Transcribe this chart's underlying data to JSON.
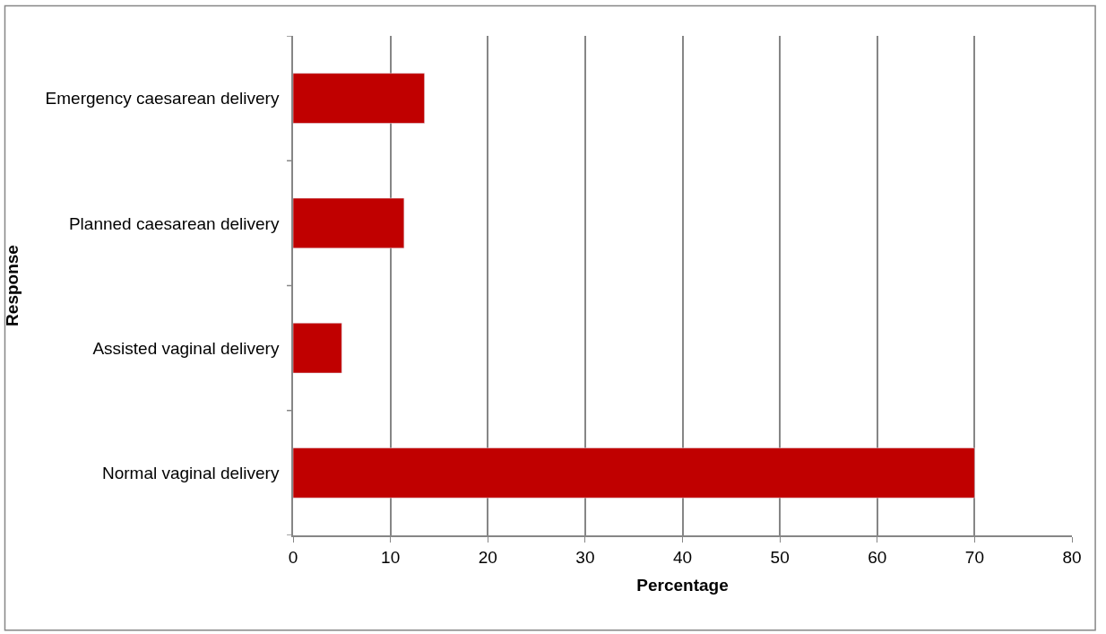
{
  "chart_data": {
    "type": "bar",
    "orientation": "horizontal",
    "xlabel": "Percentage",
    "ylabel": "Response",
    "categories": [
      "Emergency caesarean delivery",
      "Planned caesarean delivery",
      "Assisted vaginal delivery",
      "Normal vaginal delivery"
    ],
    "values": [
      13.5,
      11.4,
      5.0,
      70
    ],
    "color": "#c00000",
    "xlim": [
      0,
      80
    ],
    "xticks": [
      0,
      10,
      20,
      30,
      40,
      50,
      60,
      70,
      80
    ],
    "grid": "x"
  }
}
